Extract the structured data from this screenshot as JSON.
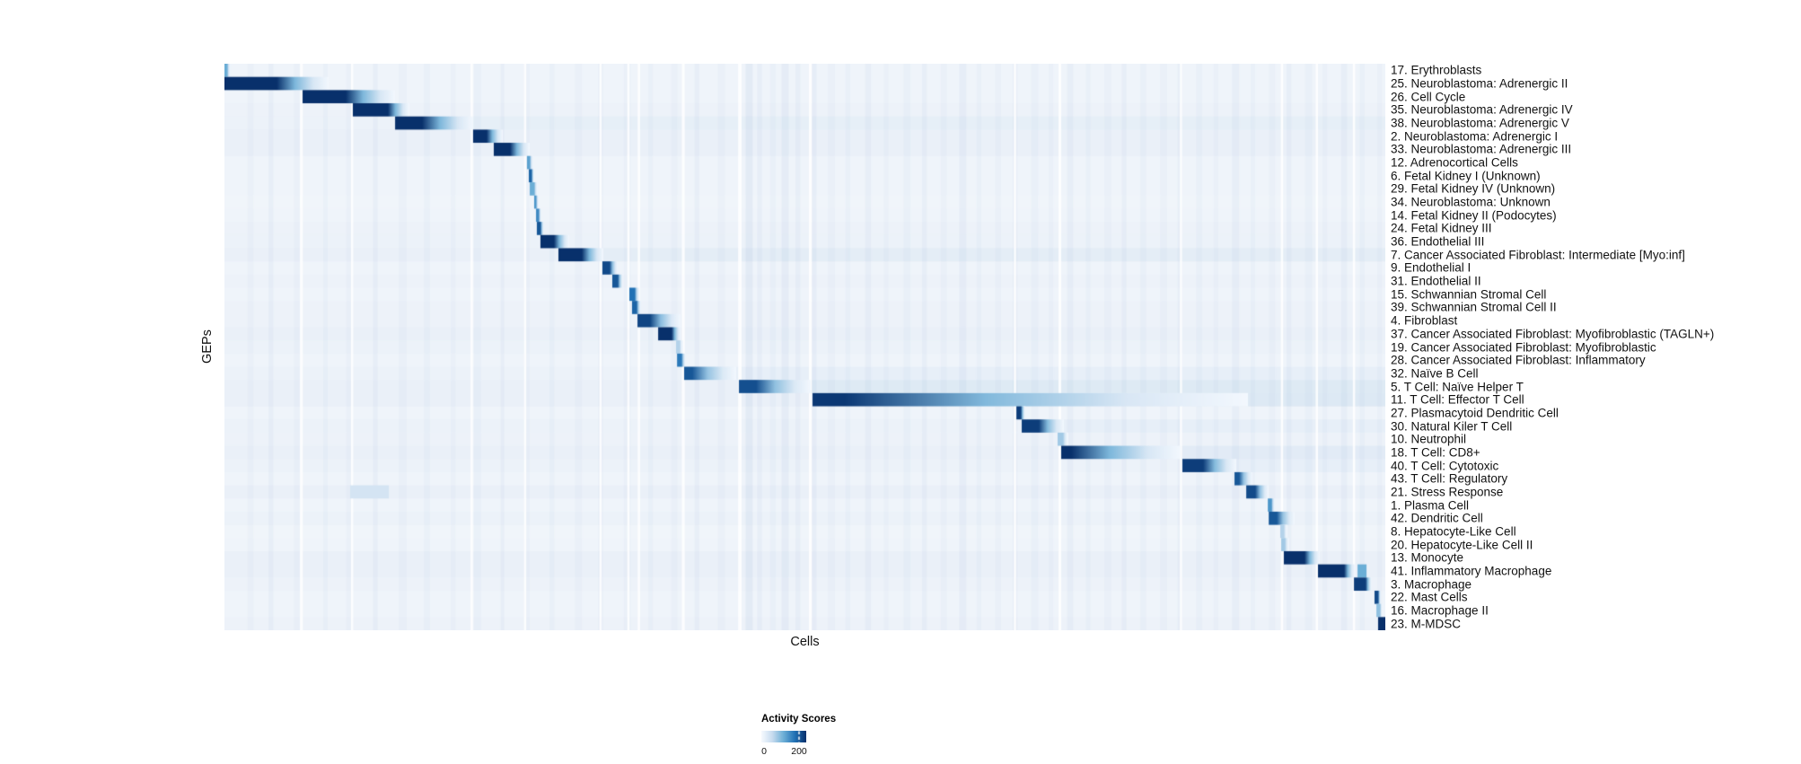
{
  "figure": {
    "background": "#ffffff",
    "text_color": "#111111",
    "heatmap_background": "#f2f6fb",
    "streak_color": "#6a8fc8",
    "cmap_stops": [
      "#f7fbff",
      "#c6dbef",
      "#6baed6",
      "#2171b5",
      "#08306b"
    ]
  },
  "chart_data": {
    "type": "heatmap",
    "title": "",
    "xlabel": "Cells",
    "ylabel": "GEPs",
    "grid": false,
    "colorbar": {
      "label": "Activity Scores",
      "min": 0,
      "max": 200,
      "min_label": "0",
      "max_label": "200",
      "tick_max_pos": 0.84
    },
    "rows": [
      {
        "label": "17. Erythroblasts",
        "s": 0.0,
        "d": 0.0023,
        "f": 0.0054,
        "p": 0.5,
        "tint": 0.02,
        "tail": 0
      },
      {
        "label": "25. Neuroblastoma: Adrenergic II",
        "s": 0.0,
        "d": 0.045,
        "f": 0.09,
        "p": 1.0,
        "tint": 0.02,
        "tail": 0
      },
      {
        "label": "26. Cell Cycle",
        "s": 0.0673,
        "d": 0.1044,
        "f": 0.147,
        "p": 1.0,
        "tint": 0.02,
        "tail": 0
      },
      {
        "label": "35. Neuroblastoma: Adrenergic IV",
        "s": 0.1106,
        "d": 0.1408,
        "f": 0.1593,
        "p": 1.0,
        "tint": 0.03,
        "tail": 0
      },
      {
        "label": "38. Neuroblastoma: Adrenergic V",
        "s": 0.147,
        "d": 0.1702,
        "f": 0.2142,
        "p": 1.0,
        "tint": 0.04,
        "tail": 0.04
      },
      {
        "label": "2. Neuroblastoma: Adrenergic I",
        "s": 0.2142,
        "d": 0.2258,
        "f": 0.2398,
        "p": 1.0,
        "tint": 0.05,
        "tail": 0
      },
      {
        "label": "33. Neuroblastoma: Adrenergic III",
        "s": 0.232,
        "d": 0.246,
        "f": 0.263,
        "p": 1.0,
        "tint": 0.05,
        "tail": 0
      },
      {
        "label": "12. Adrenocortical Cells",
        "s": 0.2606,
        "d": 0.263,
        "f": 0.2661,
        "p": 0.55,
        "tint": 0.02,
        "tail": 0
      },
      {
        "label": "6. Fetal Kidney I (Unknown)",
        "s": 0.2622,
        "d": 0.2645,
        "f": 0.2668,
        "p": 0.8,
        "tint": 0.02,
        "tail": 0
      },
      {
        "label": "29. Fetal Kidney IV (Unknown)",
        "s": 0.263,
        "d": 0.2668,
        "f": 0.2699,
        "p": 0.5,
        "tint": 0.02,
        "tail": 0
      },
      {
        "label": "34. Neuroblastoma: Unknown",
        "s": 0.2668,
        "d": 0.2684,
        "f": 0.2707,
        "p": 0.6,
        "tint": 0.01,
        "tail": 0
      },
      {
        "label": "14. Fetal Kidney II (Podocytes)",
        "s": 0.2684,
        "d": 0.2707,
        "f": 0.273,
        "p": 0.65,
        "tint": 0.02,
        "tail": 0
      },
      {
        "label": "24. Fetal Kidney III",
        "s": 0.2691,
        "d": 0.2722,
        "f": 0.2753,
        "p": 0.85,
        "tint": 0.03,
        "tail": 0
      },
      {
        "label": "36. Endothelial III",
        "s": 0.2722,
        "d": 0.2838,
        "f": 0.297,
        "p": 1.0,
        "tint": 0.04,
        "tail": 0
      },
      {
        "label": "7. Cancer Associated Fibroblast: Intermediate [Myo:inf]",
        "s": 0.2877,
        "d": 0.3078,
        "f": 0.3264,
        "p": 1.0,
        "tint": 0.05,
        "tail": 0.04
      },
      {
        "label": "9. Endothelial I",
        "s": 0.3256,
        "d": 0.3318,
        "f": 0.3388,
        "p": 0.9,
        "tint": 0.02,
        "tail": 0
      },
      {
        "label": "31. Endothelial II",
        "s": 0.3341,
        "d": 0.3388,
        "f": 0.3434,
        "p": 0.85,
        "tint": 0.03,
        "tail": 0
      },
      {
        "label": "15. Schwannian Stromal Cell",
        "s": 0.3488,
        "d": 0.3534,
        "f": 0.3573,
        "p": 0.75,
        "tint": 0.02,
        "tail": 0
      },
      {
        "label": "39. Schwannian Stromal Cell II",
        "s": 0.3511,
        "d": 0.355,
        "f": 0.3589,
        "p": 0.8,
        "tint": 0.03,
        "tail": 0
      },
      {
        "label": "4. Fibroblast",
        "s": 0.3558,
        "d": 0.3666,
        "f": 0.3929,
        "p": 0.92,
        "tint": 0.03,
        "tail": 0
      },
      {
        "label": "37. Cancer Associated Fibroblast: Myofibroblastic (TAGLN+)",
        "s": 0.3736,
        "d": 0.3852,
        "f": 0.3929,
        "p": 1.0,
        "tint": 0.05,
        "tail": 0
      },
      {
        "label": "19. Cancer Associated Fibroblast: Myofibroblastic",
        "s": 0.389,
        "d": 0.3921,
        "f": 0.3952,
        "p": 0.3,
        "tint": 0.04,
        "tail": 0
      },
      {
        "label": "28. Cancer Associated Fibroblast: Inflammatory",
        "s": 0.3899,
        "d": 0.3937,
        "f": 0.3975,
        "p": 0.72,
        "tint": 0.02,
        "tail": 0
      },
      {
        "label": "32. Naïve B Cell",
        "s": 0.396,
        "d": 0.4029,
        "f": 0.4409,
        "p": 0.85,
        "tint": 0.04,
        "tail": 0.03
      },
      {
        "label": "5. T Cell: Naïve Helper T",
        "s": 0.4432,
        "d": 0.4579,
        "f": 0.5051,
        "p": 0.88,
        "tint": 0.05,
        "tail": 0.09
      },
      {
        "label": "11. T Cell: Effector T Cell",
        "s": 0.5066,
        "d": 0.5337,
        "f": 0.8817,
        "p": 0.97,
        "tint": 0.05,
        "tail": 0.1
      },
      {
        "label": "27. Plasmacytoid Dendritic Cell",
        "s": 0.6822,
        "d": 0.686,
        "f": 0.6899,
        "p": 0.95,
        "tint": 0.02,
        "tail": 0
      },
      {
        "label": "30. Natural Kiler T Cell",
        "s": 0.6868,
        "d": 0.7015,
        "f": 0.7231,
        "p": 0.95,
        "tint": 0.04,
        "tail": 0.03
      },
      {
        "label": "10. Neutrophil",
        "s": 0.7177,
        "d": 0.7223,
        "f": 0.727,
        "p": 0.35,
        "tint": 0.03,
        "tail": 0
      },
      {
        "label": "18. T Cell: CD8+",
        "s": 0.7208,
        "d": 0.7293,
        "f": 0.8237,
        "p": 1.0,
        "tint": 0.05,
        "tail": 0.06
      },
      {
        "label": "40. T Cell: Cytotoxic",
        "s": 0.8252,
        "d": 0.843,
        "f": 0.8717,
        "p": 0.95,
        "tint": 0.04,
        "tail": 0.03
      },
      {
        "label": "43. T Cell: Regulatory",
        "s": 0.8701,
        "d": 0.874,
        "f": 0.8856,
        "p": 0.85,
        "tint": 0.02,
        "tail": 0
      },
      {
        "label": "21. Stress Response",
        "s": 0.8802,
        "d": 0.8879,
        "f": 0.8995,
        "p": 0.9,
        "tint": 0.05,
        "tail": 0,
        "extras": [
          {
            "s": 0.1083,
            "e": 0.1416,
            "p": 0.18
          }
        ]
      },
      {
        "label": "1. Plasma Cell",
        "s": 0.8988,
        "d": 0.9019,
        "f": 0.905,
        "p": 0.6,
        "tint": 0.02,
        "tail": 0
      },
      {
        "label": "42. Dendritic Cell",
        "s": 0.8996,
        "d": 0.9065,
        "f": 0.9219,
        "p": 0.85,
        "tint": 0.04,
        "tail": 0
      },
      {
        "label": "8. Hepatocyte-Like Cell",
        "s": 0.9095,
        "d": 0.9126,
        "f": 0.9157,
        "p": 0.3,
        "tint": 0.01,
        "tail": 0
      },
      {
        "label": "20. Hepatocyte-Like Cell II",
        "s": 0.9103,
        "d": 0.9134,
        "f": 0.9173,
        "p": 0.35,
        "tint": 0.02,
        "tail": 0
      },
      {
        "label": "13. Monocyte",
        "s": 0.9126,
        "d": 0.9304,
        "f": 0.9435,
        "p": 1.0,
        "tint": 0.05,
        "tail": 0
      },
      {
        "label": "41. Inflammatory Macrophage",
        "s": 0.942,
        "d": 0.9645,
        "f": 0.9737,
        "p": 1.0,
        "tint": 0.05,
        "tail": 0,
        "extras": [
          {
            "s": 0.9761,
            "e": 0.9838,
            "p": 0.5
          }
        ]
      },
      {
        "label": "3. Macrophage",
        "s": 0.973,
        "d": 0.983,
        "f": 0.9884,
        "p": 0.95,
        "tint": 0.03,
        "tail": 0
      },
      {
        "label": "22. Mast Cells",
        "s": 0.9907,
        "d": 0.9938,
        "f": 0.9961,
        "p": 0.9,
        "tint": 0.02,
        "tail": 0
      },
      {
        "label": "16. Macrophage II",
        "s": 0.9923,
        "d": 0.9954,
        "f": 0.9977,
        "p": 0.4,
        "tint": 0.02,
        "tail": 0
      },
      {
        "label": "23. M-MDSC",
        "s": 0.9938,
        "d": 1.0,
        "f": 1.0,
        "p": 1.0,
        "tint": 0.03,
        "tail": 0
      }
    ],
    "streaks": [
      [
        0.02,
        0.005,
        0.03
      ],
      [
        0.038,
        0.004,
        0.05
      ],
      [
        0.06,
        0.007,
        0.03
      ],
      [
        0.085,
        0.004,
        0.04
      ],
      [
        0.105,
        0.006,
        0.03
      ],
      [
        0.128,
        0.004,
        0.05
      ],
      [
        0.15,
        0.007,
        0.03
      ],
      [
        0.172,
        0.005,
        0.04
      ],
      [
        0.195,
        0.004,
        0.03
      ],
      [
        0.215,
        0.006,
        0.04
      ],
      [
        0.238,
        0.003,
        0.05
      ],
      [
        0.258,
        0.005,
        0.03
      ],
      [
        0.28,
        0.004,
        0.04
      ],
      [
        0.302,
        0.006,
        0.03
      ],
      [
        0.322,
        0.004,
        0.05
      ],
      [
        0.344,
        0.006,
        0.03
      ],
      [
        0.365,
        0.004,
        0.04
      ],
      [
        0.385,
        0.005,
        0.03
      ],
      [
        0.405,
        0.004,
        0.05
      ],
      [
        0.425,
        0.006,
        0.03
      ],
      [
        0.449,
        0.006,
        0.09
      ],
      [
        0.459,
        0.004,
        0.05
      ],
      [
        0.47,
        0.005,
        0.04
      ],
      [
        0.48,
        0.006,
        0.07
      ],
      [
        0.492,
        0.004,
        0.05
      ],
      [
        0.506,
        0.004,
        0.06
      ],
      [
        0.52,
        0.006,
        0.03
      ],
      [
        0.535,
        0.004,
        0.04
      ],
      [
        0.552,
        0.005,
        0.05
      ],
      [
        0.568,
        0.004,
        0.03
      ],
      [
        0.585,
        0.006,
        0.04
      ],
      [
        0.601,
        0.004,
        0.05
      ],
      [
        0.617,
        0.005,
        0.03
      ],
      [
        0.633,
        0.006,
        0.06
      ],
      [
        0.648,
        0.004,
        0.04
      ],
      [
        0.664,
        0.005,
        0.03
      ],
      [
        0.679,
        0.004,
        0.05
      ],
      [
        0.695,
        0.006,
        0.04
      ],
      [
        0.71,
        0.004,
        0.03
      ],
      [
        0.726,
        0.005,
        0.05
      ],
      [
        0.742,
        0.004,
        0.04
      ],
      [
        0.758,
        0.006,
        0.03
      ],
      [
        0.773,
        0.004,
        0.05
      ],
      [
        0.789,
        0.005,
        0.04
      ],
      [
        0.806,
        0.006,
        0.03
      ],
      [
        0.821,
        0.004,
        0.05
      ],
      [
        0.837,
        0.005,
        0.04
      ],
      [
        0.852,
        0.004,
        0.03
      ],
      [
        0.868,
        0.006,
        0.05
      ],
      [
        0.884,
        0.004,
        0.04
      ],
      [
        0.9,
        0.005,
        0.03
      ],
      [
        0.915,
        0.004,
        0.05
      ],
      [
        0.931,
        0.006,
        0.04
      ],
      [
        0.946,
        0.004,
        0.03
      ],
      [
        0.962,
        0.005,
        0.05
      ],
      [
        0.978,
        0.004,
        0.04
      ],
      [
        0.993,
        0.004,
        0.03
      ]
    ],
    "white_gaps": [
      [
        0.065,
        0.0025
      ],
      [
        0.109,
        0.002
      ],
      [
        0.212,
        0.002
      ],
      [
        0.258,
        0.002
      ],
      [
        0.323,
        0.002
      ],
      [
        0.347,
        0.002
      ],
      [
        0.356,
        0.002
      ],
      [
        0.394,
        0.0025
      ],
      [
        0.4425,
        0.003
      ],
      [
        0.5035,
        0.0025
      ],
      [
        0.68,
        0.002
      ],
      [
        0.7185,
        0.0023
      ],
      [
        0.823,
        0.002
      ],
      [
        0.91,
        0.002
      ],
      [
        0.94,
        0.002
      ],
      [
        0.972,
        0.002
      ]
    ]
  }
}
